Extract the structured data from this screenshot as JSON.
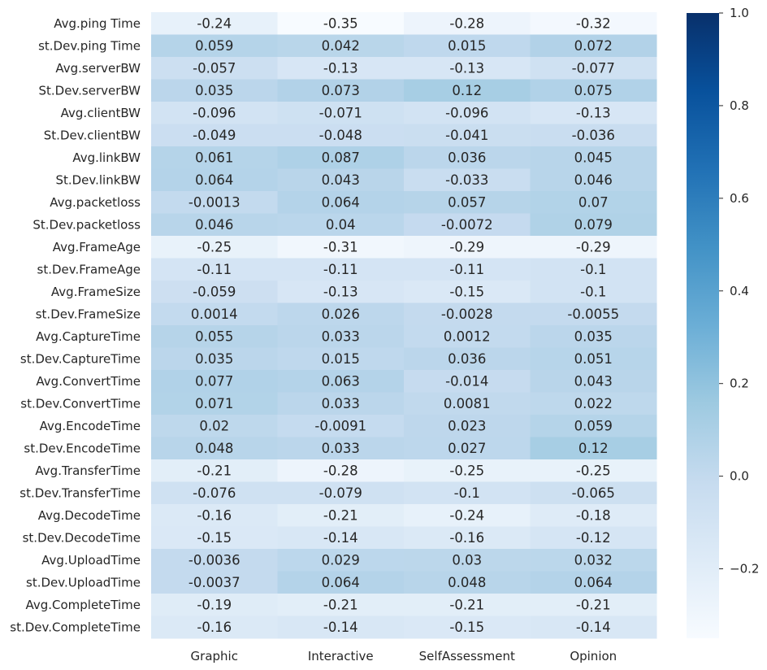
{
  "chart_data": {
    "type": "heatmap",
    "title": "",
    "xlabel": "",
    "ylabel": "",
    "columns": [
      "Graphic",
      "Interactive",
      "SelfAssessment",
      "Opinion"
    ],
    "rows": [
      "Avg.ping Time",
      "st.Dev.ping Time",
      "Avg.serverBW",
      "St.Dev.serverBW",
      "Avg.clientBW",
      "St.Dev.clientBW",
      "Avg.linkBW",
      "St.Dev.linkBW",
      "Avg.packetloss",
      "St.Dev.packetloss",
      "Avg.FrameAge",
      "st.Dev.FrameAge",
      "Avg.FrameSize",
      "st.Dev.FrameSize",
      "Avg.CaptureTime",
      "st.Dev.CaptureTime",
      "Avg.ConvertTime",
      "st.Dev.ConvertTime",
      "Avg.EncodeTime",
      "st.Dev.EncodeTime",
      "Avg.TransferTime",
      "st.Dev.TransferTime",
      "Avg.DecodeTime",
      "st.Dev.DecodeTime",
      "Avg.UploadTime",
      "st.Dev.UploadTime",
      "Avg.CompleteTime",
      "st.Dev.CompleteTime"
    ],
    "values": [
      [
        -0.24,
        -0.35,
        -0.28,
        -0.32
      ],
      [
        0.059,
        0.042,
        0.015,
        0.072
      ],
      [
        -0.057,
        -0.13,
        -0.13,
        -0.077
      ],
      [
        0.035,
        0.073,
        0.12,
        0.075
      ],
      [
        -0.096,
        -0.071,
        -0.096,
        -0.13
      ],
      [
        -0.049,
        -0.048,
        -0.041,
        -0.036
      ],
      [
        0.061,
        0.087,
        0.036,
        0.045
      ],
      [
        0.064,
        0.043,
        -0.033,
        0.046
      ],
      [
        -0.0013,
        0.064,
        0.057,
        0.07
      ],
      [
        0.046,
        0.04,
        -0.0072,
        0.079
      ],
      [
        -0.25,
        -0.31,
        -0.29,
        -0.29
      ],
      [
        -0.11,
        -0.11,
        -0.11,
        -0.1
      ],
      [
        -0.059,
        -0.13,
        -0.15,
        -0.1
      ],
      [
        0.0014,
        0.026,
        -0.0028,
        -0.0055
      ],
      [
        0.055,
        0.033,
        0.0012,
        0.035
      ],
      [
        0.035,
        0.015,
        0.036,
        0.051
      ],
      [
        0.077,
        0.063,
        -0.014,
        0.043
      ],
      [
        0.071,
        0.033,
        0.0081,
        0.022
      ],
      [
        0.02,
        -0.0091,
        0.023,
        0.059
      ],
      [
        0.048,
        0.033,
        0.027,
        0.12
      ],
      [
        -0.21,
        -0.28,
        -0.25,
        -0.25
      ],
      [
        -0.076,
        -0.079,
        -0.1,
        -0.065
      ],
      [
        -0.16,
        -0.21,
        -0.24,
        -0.18
      ],
      [
        -0.15,
        -0.14,
        -0.16,
        -0.12
      ],
      [
        -0.0036,
        0.029,
        0.03,
        0.032
      ],
      [
        -0.0037,
        0.064,
        0.048,
        0.064
      ],
      [
        -0.19,
        -0.21,
        -0.21,
        -0.21
      ],
      [
        -0.16,
        -0.14,
        -0.15,
        -0.14
      ]
    ],
    "labels": [
      [
        "-0.24",
        "-0.35",
        "-0.28",
        "-0.32"
      ],
      [
        "0.059",
        "0.042",
        "0.015",
        "0.072"
      ],
      [
        "-0.057",
        "-0.13",
        "-0.13",
        "-0.077"
      ],
      [
        "0.035",
        "0.073",
        "0.12",
        "0.075"
      ],
      [
        "-0.096",
        "-0.071",
        "-0.096",
        "-0.13"
      ],
      [
        "-0.049",
        "-0.048",
        "-0.041",
        "-0.036"
      ],
      [
        "0.061",
        "0.087",
        "0.036",
        "0.045"
      ],
      [
        "0.064",
        "0.043",
        "-0.033",
        "0.046"
      ],
      [
        "-0.0013",
        "0.064",
        "0.057",
        "0.07"
      ],
      [
        "0.046",
        "0.04",
        "-0.0072",
        "0.079"
      ],
      [
        "-0.25",
        "-0.31",
        "-0.29",
        "-0.29"
      ],
      [
        "-0.11",
        "-0.11",
        "-0.11",
        "-0.1"
      ],
      [
        "-0.059",
        "-0.13",
        "-0.15",
        "-0.1"
      ],
      [
        "0.0014",
        "0.026",
        "-0.0028",
        "-0.0055"
      ],
      [
        "0.055",
        "0.033",
        "0.0012",
        "0.035"
      ],
      [
        "0.035",
        "0.015",
        "0.036",
        "0.051"
      ],
      [
        "0.077",
        "0.063",
        "-0.014",
        "0.043"
      ],
      [
        "0.071",
        "0.033",
        "0.0081",
        "0.022"
      ],
      [
        "0.02",
        "-0.0091",
        "0.023",
        "0.059"
      ],
      [
        "0.048",
        "0.033",
        "0.027",
        "0.12"
      ],
      [
        "-0.21",
        "-0.28",
        "-0.25",
        "-0.25"
      ],
      [
        "-0.076",
        "-0.079",
        "-0.1",
        "-0.065"
      ],
      [
        "-0.16",
        "-0.21",
        "-0.24",
        "-0.18"
      ],
      [
        "-0.15",
        "-0.14",
        "-0.16",
        "-0.12"
      ],
      [
        "-0.0036",
        "0.029",
        "0.03",
        "0.032"
      ],
      [
        "-0.0037",
        "0.064",
        "0.048",
        "0.064"
      ],
      [
        "-0.19",
        "-0.21",
        "-0.21",
        "-0.21"
      ],
      [
        "-0.16",
        "-0.14",
        "-0.15",
        "-0.14"
      ]
    ],
    "colormap": "Blues",
    "vmin": -0.35,
    "vmax": 1.0,
    "colorbar_ticks": [
      -0.2,
      0.0,
      0.2,
      0.4,
      0.6,
      0.8,
      1.0
    ],
    "colorbar_tick_labels": [
      "−0.2",
      "0.0",
      "0.2",
      "0.4",
      "0.6",
      "0.8",
      "1.0"
    ],
    "legend": "right"
  }
}
